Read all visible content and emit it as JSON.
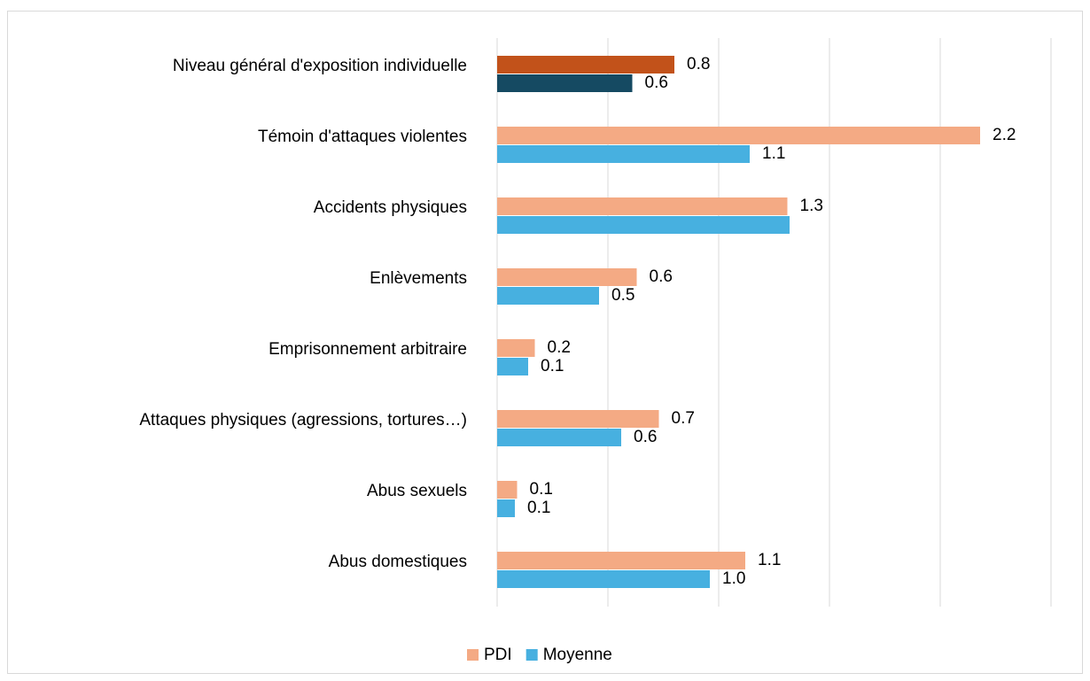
{
  "chart_data": {
    "type": "hbar",
    "categories": [
      "Niveau général d'exposition individuelle",
      "Témoin d'attaques violentes",
      "Accidents physiques",
      "Enlèvements",
      "Emprisonnement arbitraire",
      "Attaques physiques (agressions, tortures…)",
      "Abus sexuels",
      "Abus domestiques"
    ],
    "series": [
      {
        "name": "PDI",
        "color": "#f4aa84",
        "highlight_color": "#c2521a",
        "values": [
          0.8,
          2.18,
          1.31,
          0.63,
          0.17,
          0.73,
          0.09,
          1.12
        ],
        "value_labels": [
          "0.8",
          "2.2",
          "1.3",
          "0.6",
          "0.2",
          "0.7",
          "0.1",
          "1.1"
        ]
      },
      {
        "name": "Moyenne",
        "color": "#47b0e0",
        "highlight_color": "#154a62",
        "values": [
          0.61,
          1.14,
          1.32,
          0.46,
          0.14,
          0.56,
          0.08,
          0.96
        ],
        "value_labels": [
          "0.6",
          "1.1",
          null,
          "0.5",
          "0.1",
          "0.6",
          "0.1",
          "1.0"
        ]
      }
    ],
    "highlight_index": 0,
    "xlim": [
      0,
      2.5
    ],
    "xticks": [
      0,
      0.5,
      1,
      1.5,
      2,
      2.5
    ],
    "xtick_labels": false,
    "grid": true,
    "legend": "bottom"
  }
}
